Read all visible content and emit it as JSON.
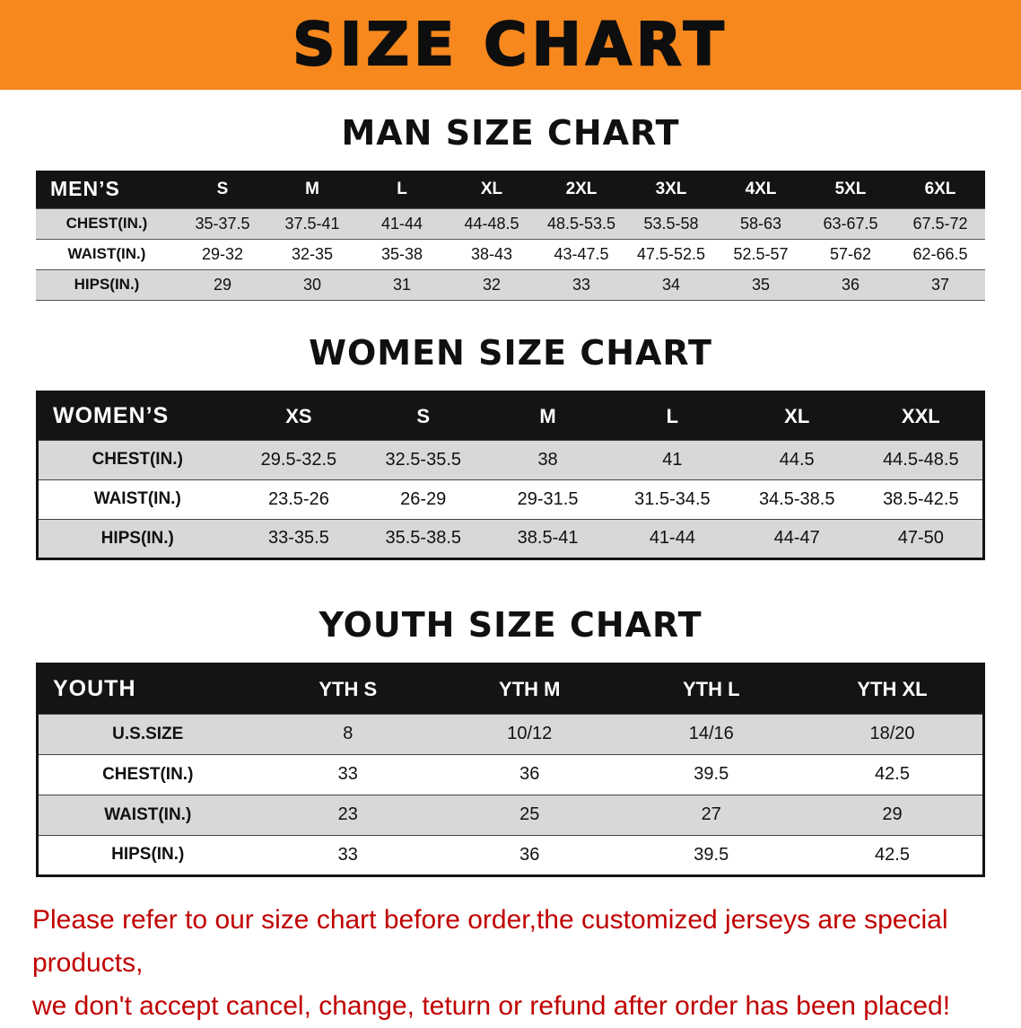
{
  "banner": {
    "title": "SIZE CHART"
  },
  "colors": {
    "banner_bg": "#F6881E",
    "table_header_bg": "#141414",
    "row_alt_bg": "#D8D8D8",
    "note_red": "#C00000"
  },
  "charts": [
    {
      "id": "men",
      "heading": "MAN SIZE CHART",
      "corner_label": "MEN’S",
      "columns": [
        "S",
        "M",
        "L",
        "XL",
        "2XL",
        "3XL",
        "4XL",
        "5XL",
        "6XL"
      ],
      "rows": [
        {
          "label": "CHEST(IN.)",
          "values": [
            "35-37.5",
            "37.5-41",
            "41-44",
            "44-48.5",
            "48.5-53.5",
            "53.5-58",
            "58-63",
            "63-67.5",
            "67.5-72"
          ]
        },
        {
          "label": "WAIST(IN.)",
          "values": [
            "29-32",
            "32-35",
            "35-38",
            "38-43",
            "43-47.5",
            "47.5-52.5",
            "52.5-57",
            "57-62",
            "62-66.5"
          ]
        },
        {
          "label": "HIPS(IN.)",
          "values": [
            "29",
            "30",
            "31",
            "32",
            "33",
            "34",
            "35",
            "36",
            "37"
          ]
        }
      ]
    },
    {
      "id": "women",
      "heading": "WOMEN SIZE CHART",
      "corner_label": "WOMEN’S",
      "columns": [
        "XS",
        "S",
        "M",
        "L",
        "XL",
        "XXL"
      ],
      "rows": [
        {
          "label": "CHEST(IN.)",
          "values": [
            "29.5-32.5",
            "32.5-35.5",
            "38",
            "41",
            "44.5",
            "44.5-48.5"
          ]
        },
        {
          "label": "WAIST(IN.)",
          "values": [
            "23.5-26",
            "26-29",
            "29-31.5",
            "31.5-34.5",
            "34.5-38.5",
            "38.5-42.5"
          ]
        },
        {
          "label": "HIPS(IN.)",
          "values": [
            "33-35.5",
            "35.5-38.5",
            "38.5-41",
            "41-44",
            "44-47",
            "47-50"
          ]
        }
      ]
    },
    {
      "id": "youth",
      "heading": "YOUTH SIZE CHART",
      "corner_label": "YOUTH",
      "columns": [
        "YTH S",
        "YTH M",
        "YTH L",
        "YTH XL"
      ],
      "rows": [
        {
          "label": "U.S.SIZE",
          "values": [
            "8",
            "10/12",
            "14/16",
            "18/20"
          ]
        },
        {
          "label": "CHEST(IN.)",
          "values": [
            "33",
            "36",
            "39.5",
            "42.5"
          ]
        },
        {
          "label": "WAIST(IN.)",
          "values": [
            "23",
            "25",
            "27",
            "29"
          ]
        },
        {
          "label": "HIPS(IN.)",
          "values": [
            "33",
            "36",
            "39.5",
            "42.5"
          ]
        }
      ]
    }
  ],
  "note": {
    "line1": "Please refer to our size chart before order,the customized jerseys are special products,",
    "line2": "we don't accept cancel, change, teturn or refund after order has been placed!"
  }
}
